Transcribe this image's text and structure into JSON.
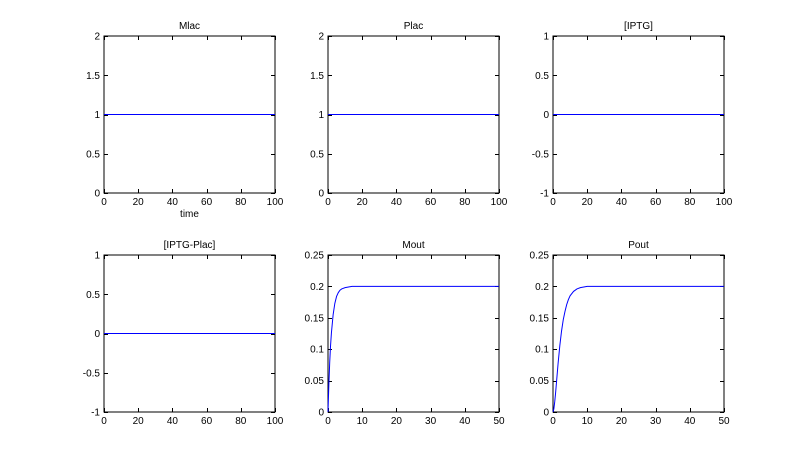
{
  "chart_data": [
    {
      "type": "line",
      "title": "Mlac",
      "xlabel": "time",
      "ylabel": "",
      "xlim": [
        0,
        100
      ],
      "ylim": [
        0,
        2
      ],
      "xticks": [
        "0",
        "20",
        "40",
        "60",
        "80",
        "100"
      ],
      "yticks": [
        "0",
        "0.5",
        "1",
        "1.5",
        "2"
      ],
      "grid": false,
      "series": [
        {
          "color": "#0000ff",
          "x": [
            0,
            100
          ],
          "y": [
            1,
            1
          ]
        }
      ]
    },
    {
      "type": "line",
      "title": "Plac",
      "xlabel": "",
      "ylabel": "",
      "xlim": [
        0,
        100
      ],
      "ylim": [
        0,
        2
      ],
      "xticks": [
        "0",
        "20",
        "40",
        "60",
        "80",
        "100"
      ],
      "yticks": [
        "0",
        "0.5",
        "1",
        "1.5",
        "2"
      ],
      "grid": false,
      "series": [
        {
          "color": "#0000ff",
          "x": [
            0,
            100
          ],
          "y": [
            1,
            1
          ]
        }
      ]
    },
    {
      "type": "line",
      "title": "[IPTG]",
      "xlabel": "",
      "ylabel": "",
      "xlim": [
        0,
        100
      ],
      "ylim": [
        -1,
        1
      ],
      "xticks": [
        "0",
        "20",
        "40",
        "60",
        "80",
        "100"
      ],
      "yticks": [
        "-1",
        "-0.5",
        "0",
        "0.5",
        "1"
      ],
      "grid": false,
      "series": [
        {
          "color": "#0000ff",
          "x": [
            0,
            100
          ],
          "y": [
            0,
            0
          ]
        }
      ]
    },
    {
      "type": "line",
      "title": "[IPTG-Plac]",
      "xlabel": "",
      "ylabel": "",
      "xlim": [
        0,
        100
      ],
      "ylim": [
        -1,
        1
      ],
      "xticks": [
        "0",
        "20",
        "40",
        "60",
        "80",
        "100"
      ],
      "yticks": [
        "-1",
        "-0.5",
        "0",
        "0.5",
        "1"
      ],
      "grid": false,
      "series": [
        {
          "color": "#0000ff",
          "x": [
            0,
            100
          ],
          "y": [
            0,
            0
          ]
        }
      ]
    },
    {
      "type": "line",
      "title": "Mout",
      "xlabel": "",
      "ylabel": "",
      "xlim": [
        0,
        50
      ],
      "ylim": [
        0,
        0.25
      ],
      "xticks": [
        "0",
        "10",
        "20",
        "30",
        "40",
        "50"
      ],
      "yticks": [
        "0",
        "0.05",
        "0.1",
        "0.15",
        "0.2",
        "0.25"
      ],
      "grid": false,
      "series": [
        {
          "color": "#0000ff",
          "x": [
            0,
            0.25,
            0.5,
            0.75,
            1,
            1.5,
            2,
            2.5,
            3,
            3.5,
            4,
            5,
            6,
            7,
            8,
            10,
            15,
            20,
            30,
            40,
            50
          ],
          "y": [
            0,
            0.044,
            0.079,
            0.106,
            0.126,
            0.155,
            0.173,
            0.184,
            0.19,
            0.194,
            0.196,
            0.198,
            0.199,
            0.2,
            0.2,
            0.2,
            0.2,
            0.2,
            0.2,
            0.2,
            0.2
          ]
        }
      ]
    },
    {
      "type": "line",
      "title": "Pout",
      "xlabel": "",
      "ylabel": "",
      "xlim": [
        0,
        50
      ],
      "ylim": [
        0,
        0.25
      ],
      "xticks": [
        "0",
        "10",
        "20",
        "30",
        "40",
        "50"
      ],
      "yticks": [
        "0",
        "0.05",
        "0.1",
        "0.15",
        "0.2",
        "0.25"
      ],
      "grid": false,
      "series": [
        {
          "color": "#0000ff",
          "x": [
            0,
            0.25,
            0.5,
            0.75,
            1,
            1.5,
            2,
            2.5,
            3,
            3.5,
            4,
            4.5,
            5,
            6,
            7,
            8,
            10,
            15,
            20,
            30,
            40,
            50
          ],
          "y": [
            0,
            0.005,
            0.016,
            0.03,
            0.046,
            0.078,
            0.106,
            0.129,
            0.147,
            0.16,
            0.171,
            0.179,
            0.185,
            0.192,
            0.196,
            0.198,
            0.2,
            0.2,
            0.2,
            0.2,
            0.2,
            0.2
          ]
        }
      ]
    }
  ]
}
